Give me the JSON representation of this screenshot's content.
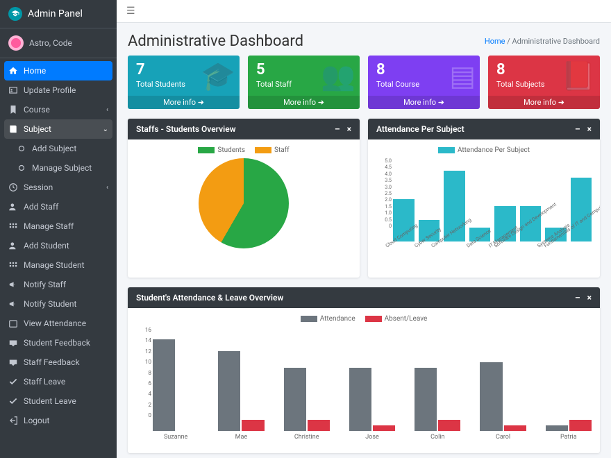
{
  "brand": "Admin Panel",
  "user": "Astro, Code",
  "nav": [
    {
      "icon": "home",
      "label": "Home",
      "active": true
    },
    {
      "icon": "id",
      "label": "Update Profile"
    },
    {
      "icon": "bookmark",
      "label": "Course",
      "caret": "left"
    },
    {
      "icon": "book",
      "label": "Subject",
      "caret": "down",
      "open": true
    },
    {
      "icon": "circle",
      "label": "Add Subject",
      "sub": true
    },
    {
      "icon": "circle",
      "label": "Manage Subject",
      "sub": true
    },
    {
      "icon": "clock",
      "label": "Session",
      "caret": "left"
    },
    {
      "icon": "user-plus",
      "label": "Add Staff"
    },
    {
      "icon": "grid",
      "label": "Manage Staff"
    },
    {
      "icon": "user-plus",
      "label": "Add Student"
    },
    {
      "icon": "grid",
      "label": "Manage Student"
    },
    {
      "icon": "megaphone",
      "label": "Notify Staff"
    },
    {
      "icon": "megaphone",
      "label": "Notify Student"
    },
    {
      "icon": "calendar",
      "label": "View Attendance"
    },
    {
      "icon": "comment",
      "label": "Student Feedback"
    },
    {
      "icon": "comment",
      "label": "Staff Feedback"
    },
    {
      "icon": "check",
      "label": "Staff Leave"
    },
    {
      "icon": "check",
      "label": "Student Leave"
    },
    {
      "icon": "logout",
      "label": "Logout"
    }
  ],
  "page_title": "Administrative Dashboard",
  "breadcrumb_home": "Home",
  "breadcrumb_current": "Administrative Dashboard",
  "more_info": "More info",
  "stats": [
    {
      "value": "7",
      "label": "Total Students",
      "color": "#17a2b8",
      "icon": "cap"
    },
    {
      "value": "5",
      "label": "Total Staff",
      "color": "#28a745",
      "icon": "users"
    },
    {
      "value": "8",
      "label": "Total Course",
      "color": "#7e3ff2",
      "icon": "list"
    },
    {
      "value": "8",
      "label": "Total Subjects",
      "color": "#dc3545",
      "icon": "book"
    }
  ],
  "pie_panel": {
    "title": "Staffs - Students Overview",
    "legend": [
      {
        "label": "Students",
        "color": "#28a745"
      },
      {
        "label": "Staff",
        "color": "#f39c12"
      }
    ],
    "students": 7,
    "staff": 5
  },
  "bar_panel": {
    "title": "Attendance Per Subject",
    "legend_label": "Attendance Per Subject",
    "color": "#2bb9c9",
    "ymax": 5.0,
    "yticks": [
      "5.0",
      "4.5",
      "4.0",
      "3.5",
      "3.0",
      "2.5",
      "2.0",
      "1.5",
      "1.0",
      "0.5",
      "0"
    ],
    "categories": [
      "Cloud Computing",
      "Cyber Security",
      "Computer Networking",
      "Data Science",
      "IT Management",
      "Software Design and Development",
      "Systems Analysis",
      "Fundamentals of IT and Computers"
    ],
    "values": [
      3.0,
      1.5,
      5.0,
      1.0,
      2.5,
      2.5,
      1.0,
      4.5
    ]
  },
  "grouped_panel": {
    "title": "Student's Attendance & Leave Overview",
    "legend": [
      {
        "label": "Attendance",
        "color": "#6c757d"
      },
      {
        "label": "Absent/Leave",
        "color": "#dc3545"
      }
    ],
    "ymax": 16,
    "yticks": [
      "16",
      "14",
      "12",
      "10",
      "8",
      "6",
      "4",
      "2",
      "0"
    ],
    "categories": [
      "Suzanne",
      "Mae",
      "Christine",
      "Jose",
      "Colin",
      "Carol",
      "Patria"
    ],
    "attendance": [
      16,
      14,
      11,
      11,
      11,
      12,
      1
    ],
    "absent": [
      0,
      2,
      2,
      1,
      2,
      1,
      2
    ]
  }
}
